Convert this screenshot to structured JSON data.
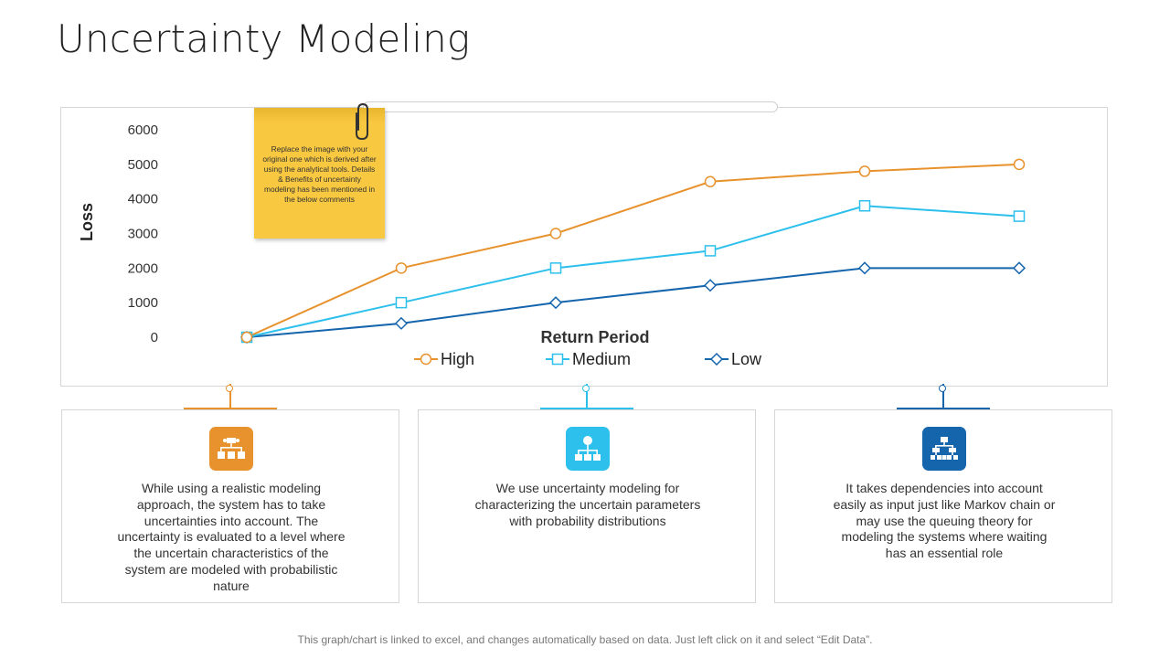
{
  "slide": {
    "title": "Uncertainty Modeling",
    "footer": "This graph/chart is linked to excel, and changes automatically based on data. Just left click on it and select “Edit Data”."
  },
  "sticky_note": {
    "text": "Replace the image with your original one which is derived after using the analytical tools. Details & Benefits of uncertainty modeling has been mentioned in the below comments"
  },
  "chart_data": {
    "type": "line",
    "title": "",
    "xlabel": "Return Period",
    "ylabel": "Loss",
    "ylim": [
      0,
      6000
    ],
    "yticks": [
      0,
      1000,
      2000,
      3000,
      4000,
      5000,
      6000
    ],
    "x": [
      1,
      2,
      3,
      4,
      5,
      6
    ],
    "grid": false,
    "legend_position": "bottom",
    "series": [
      {
        "name": "High",
        "color": "#e8922e",
        "marker": "circle",
        "values": [
          0,
          2000,
          3000,
          4500,
          4800,
          5000
        ]
      },
      {
        "name": "Medium",
        "color": "#2ec0ec",
        "marker": "square",
        "values": [
          0,
          1000,
          2000,
          2500,
          3800,
          3500
        ]
      },
      {
        "name": "Low",
        "color": "#1565ad",
        "marker": "diamond",
        "values": [
          0,
          400,
          1000,
          1500,
          2000,
          2000
        ]
      }
    ]
  },
  "cards": [
    {
      "color": "#e8922e",
      "icon": "org-chart-icon",
      "text": "While using a realistic modeling approach, the system has to take uncertainties into account. The uncertainty is evaluated to a level where the uncertain characteristics of the system are modeled with probabilistic nature"
    },
    {
      "color": "#2ec0ec",
      "icon": "hierarchy-icon",
      "text": "We use uncertainty modeling for characterizing the uncertain parameters with probability distributions"
    },
    {
      "color": "#1565ad",
      "icon": "network-icon",
      "text": "It takes dependencies into account easily as input just like Markov chain or may use the queuing theory for modeling the systems where waiting has an essential role"
    }
  ]
}
